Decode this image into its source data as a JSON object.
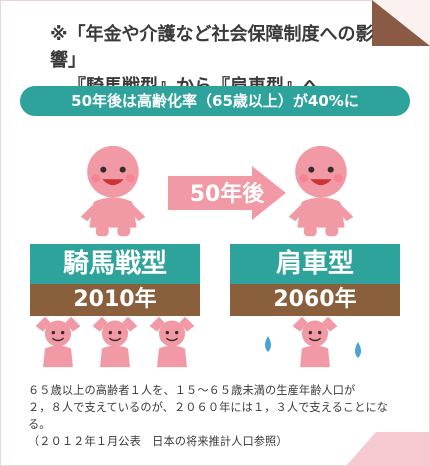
{
  "title": {
    "line1": "※「年金や介護など社会保障制度への影響」",
    "line2": "『騎馬戦型』から『肩車型』へ"
  },
  "banner": "50年後は高齢化率（65歳以上）が40%に",
  "arrow_label": "50年後",
  "left_panel": {
    "type": "騎馬戦型",
    "year": "2010年"
  },
  "right_panel": {
    "type": "肩車型",
    "year": "2060年"
  },
  "caption": {
    "line1": "６５歳以上の高齢者１人を、１５～６５歳未満の生産年齢人口が",
    "line2": "２，８人で支えているのが、２０６０年には１，３人で支えることになる。",
    "line3": "（２０１２年１月公表　日本の将来推計人口参照）"
  },
  "colors": {
    "teal": "#2ea39b",
    "brown": "#8a5f3c",
    "pink": "#f19aa5",
    "sweat": "#4aa3d8"
  },
  "icons": [
    "elderly-person-figure",
    "worker-figure",
    "right-arrow-icon",
    "sweat-drop-icon"
  ]
}
